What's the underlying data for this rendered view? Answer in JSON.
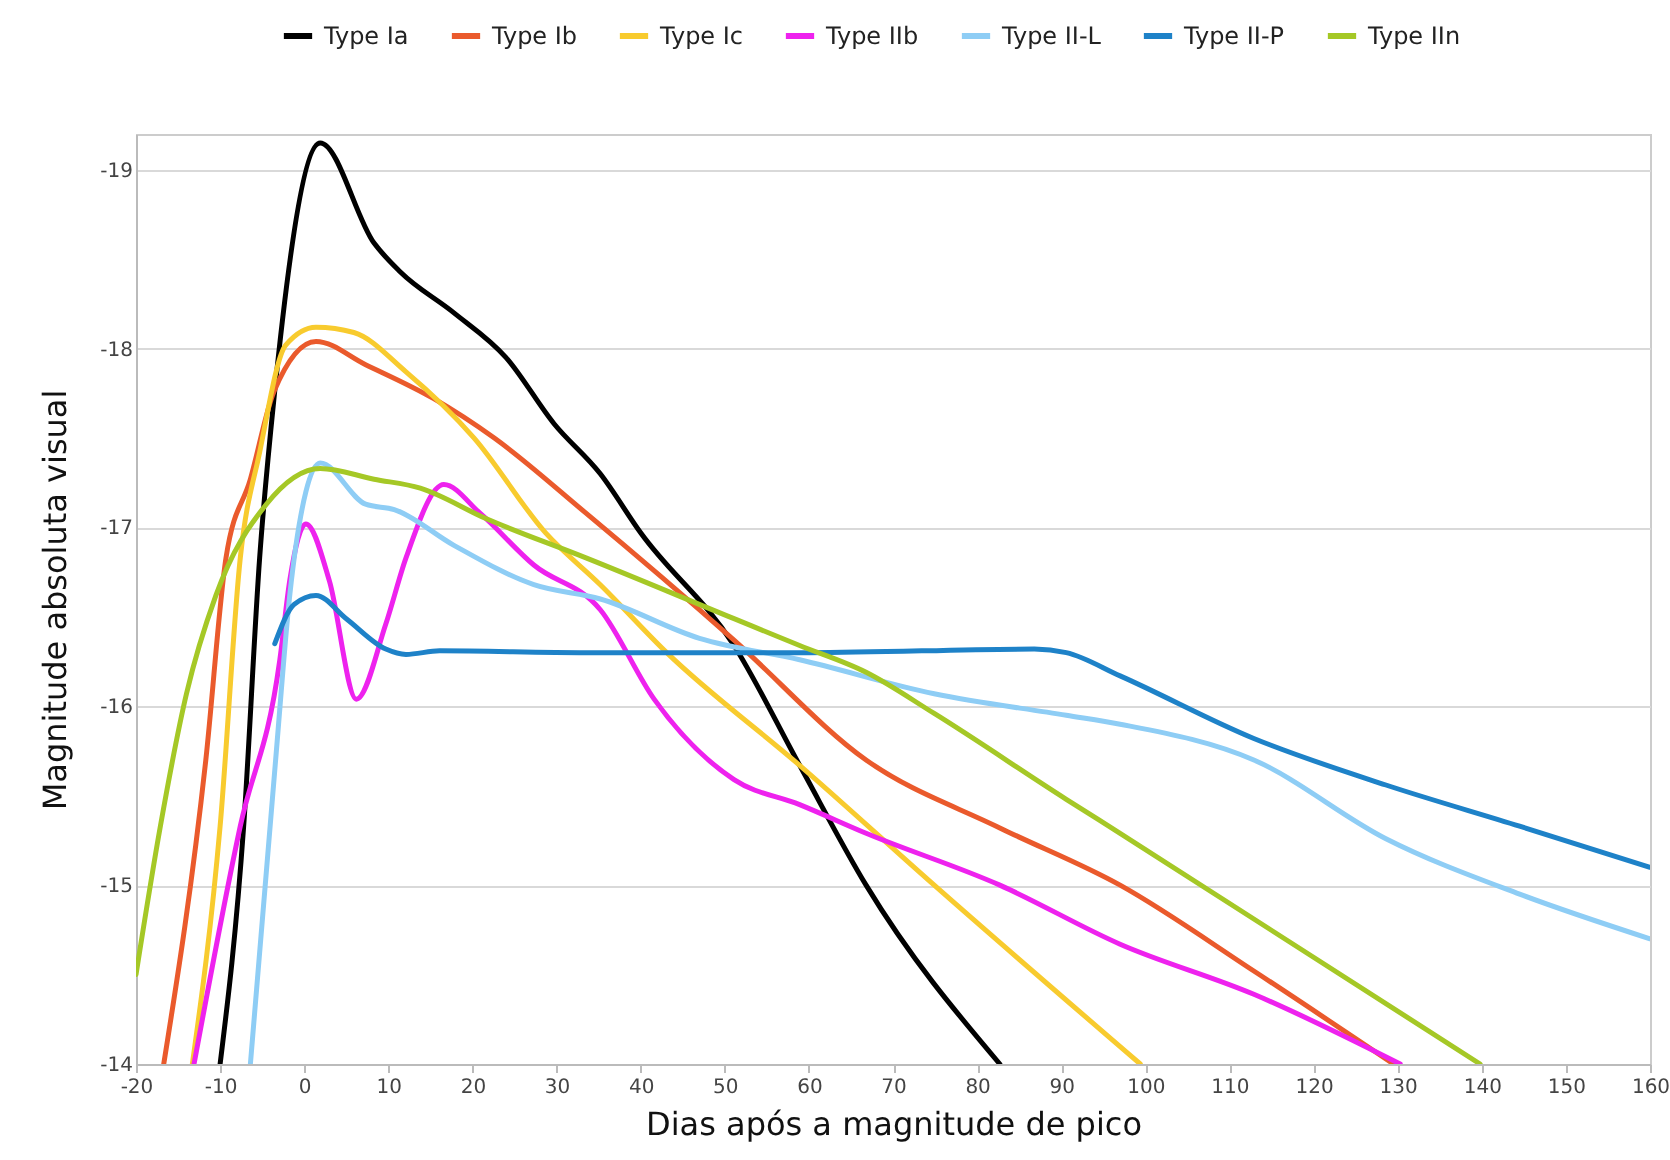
{
  "chart_data": {
    "type": "line",
    "xlabel": "Dias após a magnitude de pico",
    "ylabel": "Magnitude absoluta visual",
    "xlim": [
      -20,
      160
    ],
    "xticks": [
      -20,
      -10,
      0,
      10,
      20,
      30,
      40,
      50,
      60,
      70,
      80,
      90,
      100,
      110,
      120,
      130,
      140,
      150,
      160
    ],
    "ylim": [
      -14,
      -19.2
    ],
    "yticks": [
      -19,
      -18,
      -17,
      -16,
      -15,
      -14
    ],
    "grid": "y",
    "legend": "top",
    "marker": "none",
    "line_style": "solid",
    "series": [
      {
        "name": "Type Ia",
        "color": "#000000",
        "x": [
          -10,
          -7.2,
          -5.3,
          -3.6,
          1.9,
          8.3,
          11.4,
          17.8,
          24,
          29.7,
          35.2,
          40,
          51.1,
          58.9,
          66.8,
          82.7
        ],
        "values": [
          -14,
          -15.33,
          -16.83,
          -17.72,
          -19.15,
          -18.59,
          -18.43,
          -18.2,
          -17.95,
          -17.58,
          -17.3,
          -16.97,
          -16.34,
          -15.67,
          -15,
          -14
        ]
      },
      {
        "name": "Type Ib",
        "color": "#ea5a2c",
        "x": [
          -16.7,
          -11.7,
          -9.3,
          -6.4,
          -3.6,
          1.4,
          7.3,
          15.4,
          22.6,
          33.5,
          51.1,
          66.8,
          82.7,
          97,
          112.9,
          129.5
        ],
        "values": [
          -14,
          -15.7,
          -16.83,
          -17.27,
          -17.76,
          -18.04,
          -17.91,
          -17.72,
          -17.5,
          -17.08,
          -16.37,
          -15.7,
          -15.32,
          -15,
          -14.52,
          -14
        ]
      },
      {
        "name": "Type Ic",
        "color": "#f8cb2e",
        "x": [
          -13.3,
          -10,
          -7.6,
          -5.3,
          -2.2,
          1.4,
          5.9,
          12.1,
          20.2,
          28.7,
          35.2,
          43.1,
          58.9,
          74.9,
          99.4
        ],
        "values": [
          -14,
          -15.33,
          -16.83,
          -17.42,
          -18.02,
          -18.12,
          -18.09,
          -17.87,
          -17.5,
          -16.97,
          -16.68,
          -16.3,
          -15.67,
          -15,
          -14
        ]
      },
      {
        "name": "Type IIb",
        "color": "#ee22ee",
        "x": [
          -13.1,
          -7.6,
          -2.9,
          -1.7,
          0.2,
          3,
          6.2,
          9.7,
          12.1,
          16.6,
          20.9,
          27.3,
          35.2,
          41.6,
          51.1,
          58.9,
          66.8,
          82.7,
          97,
          112.9,
          130.3
        ],
        "values": [
          -14,
          -15.33,
          -16.26,
          -16.71,
          -17.02,
          -16.7,
          -16.04,
          -16.46,
          -16.83,
          -17.24,
          -17.08,
          -16.79,
          -16.54,
          -16.04,
          -15.59,
          -15.45,
          -15.29,
          -15,
          -14.67,
          -14.39,
          -14
        ]
      },
      {
        "name": "Type II-L",
        "color": "#8ecdf5",
        "x": [
          -6.4,
          -3.4,
          -1.7,
          0.2,
          1.9,
          7.3,
          10.7,
          17.8,
          27.3,
          35.2,
          47,
          58.9,
          74.9,
          90.6,
          97,
          112.9,
          128.6,
          144.5,
          160
        ],
        "values": [
          -14,
          -15.7,
          -16.63,
          -17.2,
          -17.36,
          -17.13,
          -17.1,
          -16.9,
          -16.68,
          -16.6,
          -16.38,
          -16.26,
          -16.07,
          -15.95,
          -15.9,
          -15.7,
          -15.26,
          -14.95,
          -14.7
        ]
      },
      {
        "name": "Type II-P",
        "color": "#1e82c8",
        "x": [
          -3.5,
          -1.2,
          1.4,
          5,
          9.7,
          12.1,
          16.1,
          33.5,
          60,
          86.8,
          90.6,
          97,
          112.9,
          128.6,
          144.5,
          160
        ],
        "values": [
          -16.35,
          -16.57,
          -16.62,
          -16.49,
          -16.32,
          -16.29,
          -16.31,
          -16.3,
          -16.3,
          -16.32,
          -16.3,
          -16.17,
          -15.82,
          -15.56,
          -15.33,
          -15.1
        ]
      },
      {
        "name": "Type IIn",
        "color": "#a5c826",
        "x": [
          -20,
          -17.1,
          -14,
          -10.5,
          -4.5,
          1.9,
          8.3,
          13.8,
          21.6,
          33.5,
          51.1,
          58.9,
          66.8,
          74.9,
          90.6,
          97,
          139.8
        ],
        "values": [
          -14.5,
          -15.33,
          -16.07,
          -16.62,
          -17.13,
          -17.33,
          -17.27,
          -17.22,
          -17.05,
          -16.83,
          -16.49,
          -16.34,
          -16.19,
          -15.96,
          -15.48,
          -15.29,
          -14
        ]
      }
    ]
  }
}
